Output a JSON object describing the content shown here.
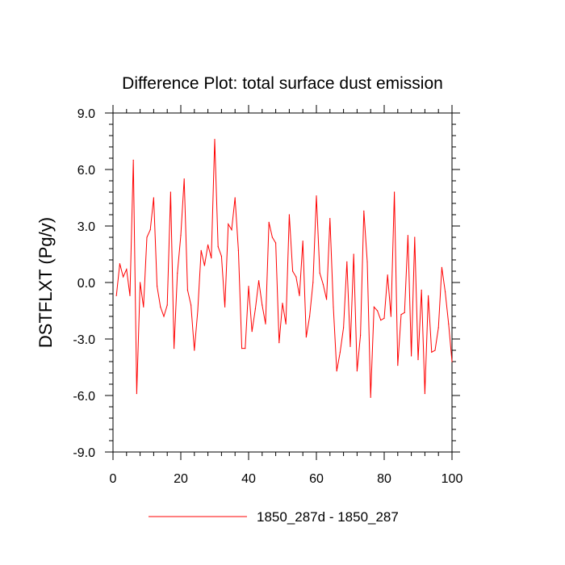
{
  "chart_data": {
    "type": "line",
    "title": "Difference Plot: total surface dust emission",
    "xlabel": "",
    "ylabel": "DSTFLXT  (Pg/y)",
    "xlim": [
      0,
      100
    ],
    "ylim": [
      -9,
      9
    ],
    "x_ticks": [
      0,
      20,
      40,
      60,
      80,
      100
    ],
    "x_tick_labels": [
      "0",
      "20",
      "40",
      "60",
      "80",
      "100"
    ],
    "y_ticks": [
      -9,
      -6,
      -3,
      0,
      3,
      6,
      9
    ],
    "y_tick_labels": [
      "-9.0",
      "-6.0",
      "-3.0",
      "0.0",
      "3.0",
      "6.0",
      "9.0"
    ],
    "grid": false,
    "legend_position": "bottom-center",
    "series": [
      {
        "name": "1850_287d - 1850_287",
        "color": "#ff0000",
        "x": [
          1,
          2,
          3,
          4,
          5,
          6,
          7,
          8,
          9,
          10,
          11,
          12,
          13,
          14,
          15,
          16,
          17,
          18,
          19,
          20,
          21,
          22,
          23,
          24,
          25,
          26,
          27,
          28,
          29,
          30,
          31,
          32,
          33,
          34,
          35,
          36,
          37,
          38,
          39,
          40,
          41,
          42,
          43,
          44,
          45,
          46,
          47,
          48,
          49,
          50,
          51,
          52,
          53,
          54,
          55,
          56,
          57,
          58,
          59,
          60,
          61,
          62,
          63,
          64,
          65,
          66,
          67,
          68,
          69,
          70,
          71,
          72,
          73,
          74,
          75,
          76,
          77,
          78,
          79,
          80,
          81,
          82,
          83,
          84,
          85,
          86,
          87,
          88,
          89,
          90,
          91,
          92,
          93,
          94,
          95,
          96,
          97,
          98,
          99,
          100
        ],
        "y": [
          -0.7,
          1.0,
          0.3,
          0.7,
          -0.7,
          6.5,
          -5.9,
          0.0,
          -1.3,
          2.4,
          2.8,
          4.5,
          -0.2,
          -1.3,
          -1.8,
          -1.2,
          4.8,
          -3.5,
          0.5,
          2.5,
          5.5,
          -0.4,
          -1.2,
          -3.6,
          -1.5,
          1.7,
          0.9,
          2.0,
          1.3,
          7.6,
          1.9,
          1.4,
          -1.3,
          3.1,
          2.8,
          4.5,
          1.7,
          -3.5,
          -3.5,
          -0.2,
          -2.6,
          -1.4,
          0.1,
          -1.2,
          -2.2,
          3.2,
          2.4,
          2.1,
          -3.2,
          -1.1,
          -2.2,
          3.6,
          0.6,
          0.3,
          -0.7,
          2.2,
          -2.9,
          -1.8,
          0.0,
          4.6,
          0.5,
          -0.1,
          -0.9,
          3.4,
          -1.3,
          -4.7,
          -3.7,
          -2.4,
          1.1,
          -3.4,
          1.5,
          -4.7,
          -2.8,
          3.8,
          1.1,
          -6.1,
          -1.3,
          -1.5,
          -2.0,
          -1.9,
          0.4,
          -1.8,
          4.8,
          -4.4,
          -1.7,
          -1.6,
          2.5,
          -3.9,
          2.4,
          -4.1,
          -0.4,
          -5.9,
          -0.7,
          -3.7,
          -3.6,
          -2.4,
          0.8,
          -0.5,
          -2.2,
          -4.2
        ]
      }
    ]
  }
}
